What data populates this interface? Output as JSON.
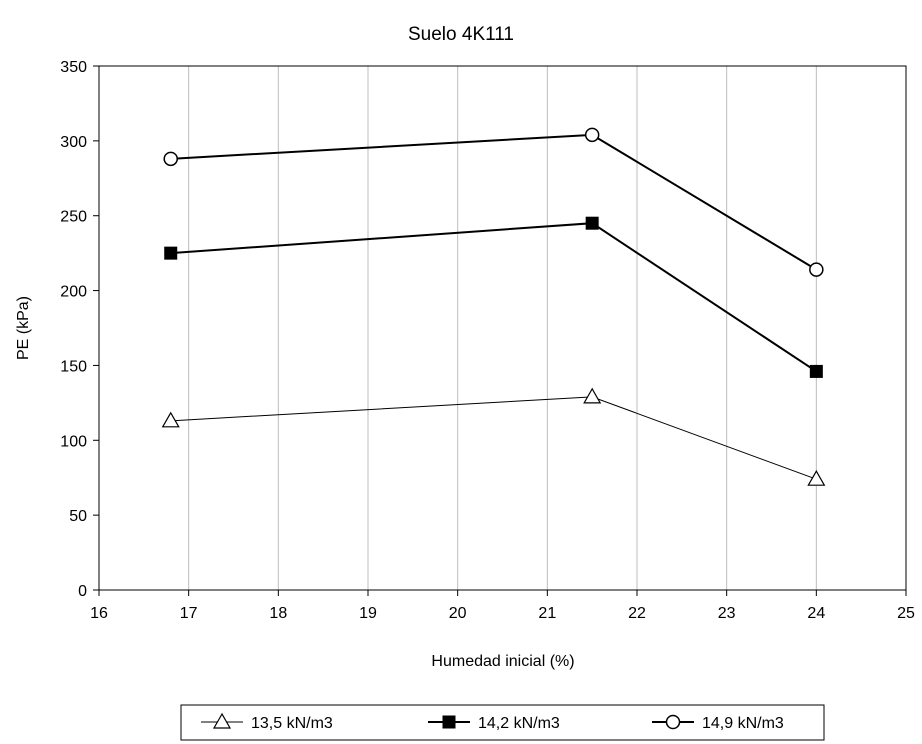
{
  "chart_data": {
    "type": "line",
    "title": "Suelo 4K111",
    "xlabel": "Humedad inicial (%)",
    "ylabel": "PE (kPa)",
    "xlim": [
      16,
      25
    ],
    "ylim": [
      0,
      350
    ],
    "xticks": [
      16,
      17,
      18,
      19,
      20,
      21,
      22,
      23,
      24,
      25
    ],
    "yticks": [
      0,
      50,
      100,
      150,
      200,
      250,
      300,
      350
    ],
    "grid": "vertical",
    "legend_position": "bottom",
    "series": [
      {
        "name": "13,5 kN/m3",
        "marker": "triangle-open",
        "line_weight": "thin",
        "color": "#000000",
        "x": [
          16.8,
          21.5,
          24.0
        ],
        "y": [
          113,
          129,
          74
        ]
      },
      {
        "name": "14,2 kN/m3",
        "marker": "square-filled",
        "line_weight": "thick",
        "color": "#000000",
        "x": [
          16.8,
          21.5,
          24.0
        ],
        "y": [
          225,
          245,
          146
        ]
      },
      {
        "name": "14,9 kN/m3",
        "marker": "circle-open",
        "line_weight": "thick",
        "color": "#000000",
        "x": [
          16.8,
          21.5,
          24.0
        ],
        "y": [
          288,
          304,
          214
        ]
      }
    ]
  }
}
